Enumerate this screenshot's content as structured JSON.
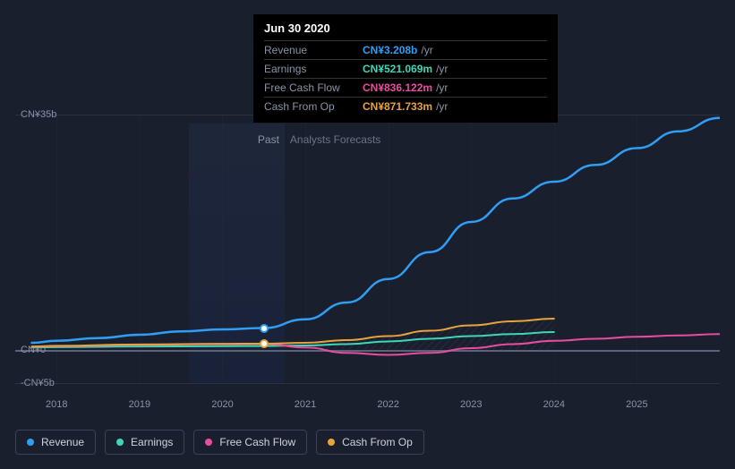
{
  "tooltip": {
    "date": "Jun 30 2020",
    "rows": [
      {
        "label": "Revenue",
        "value": "CN¥3.208b",
        "unit": "/yr",
        "color": "#2f9ef4"
      },
      {
        "label": "Earnings",
        "value": "CN¥521.069m",
        "unit": "/yr",
        "color": "#3fd6b8"
      },
      {
        "label": "Free Cash Flow",
        "value": "CN¥836.122m",
        "unit": "/yr",
        "color": "#e94ca0"
      },
      {
        "label": "Cash From Op",
        "value": "CN¥871.733m",
        "unit": "/yr",
        "color": "#e8a33d"
      }
    ]
  },
  "chart": {
    "bg": "#1a1f2e",
    "grid_color": "#2a3142",
    "baseline_color": "#5a6378",
    "y": {
      "min": -5,
      "max": 35,
      "ticks": [
        {
          "v": 35,
          "label": "CN¥35b"
        },
        {
          "v": 0,
          "label": "CN¥0"
        },
        {
          "v": -5,
          "label": "-CN¥5b"
        }
      ]
    },
    "x": {
      "min": 2017.5,
      "max": 2026,
      "ticks": [
        2018,
        2019,
        2020,
        2021,
        2022,
        2023,
        2024,
        2025
      ]
    },
    "past_end": 2020.75,
    "past_label": "Past",
    "forecast_label": "Analysts Forecasts",
    "marker_x": 2020.5,
    "series": [
      {
        "name": "Revenue",
        "color": "#2f9ef4",
        "width": 2.5,
        "pts": [
          [
            2017.7,
            1.0
          ],
          [
            2018,
            1.3
          ],
          [
            2018.5,
            1.7
          ],
          [
            2019,
            2.2
          ],
          [
            2019.5,
            2.7
          ],
          [
            2020,
            3.0
          ],
          [
            2020.5,
            3.2
          ],
          [
            2021,
            4.5
          ],
          [
            2021.5,
            7.0
          ],
          [
            2022,
            10.5
          ],
          [
            2022.5,
            14.5
          ],
          [
            2023,
            19.0
          ],
          [
            2023.5,
            22.5
          ],
          [
            2024,
            25.0
          ],
          [
            2024.5,
            27.5
          ],
          [
            2025,
            30.0
          ],
          [
            2025.5,
            32.5
          ],
          [
            2026,
            34.5
          ]
        ]
      },
      {
        "name": "Earnings",
        "color": "#3fd6b8",
        "width": 2,
        "pts": [
          [
            2017.7,
            0.3
          ],
          [
            2018,
            0.35
          ],
          [
            2019,
            0.45
          ],
          [
            2020,
            0.5
          ],
          [
            2020.5,
            0.52
          ],
          [
            2021,
            0.6
          ],
          [
            2021.5,
            0.8
          ],
          [
            2022,
            1.2
          ],
          [
            2022.5,
            1.6
          ],
          [
            2023,
            2.0
          ],
          [
            2023.5,
            2.3
          ],
          [
            2024,
            2.6
          ]
        ]
      },
      {
        "name": "Free Cash Flow",
        "color": "#e94ca0",
        "width": 2,
        "pts": [
          [
            2017.7,
            0.4
          ],
          [
            2018,
            0.5
          ],
          [
            2019,
            0.7
          ],
          [
            2020,
            0.8
          ],
          [
            2020.5,
            0.84
          ],
          [
            2021,
            0.3
          ],
          [
            2021.5,
            -0.5
          ],
          [
            2022,
            -0.8
          ],
          [
            2022.5,
            -0.5
          ],
          [
            2023,
            0.2
          ],
          [
            2023.5,
            0.8
          ],
          [
            2024,
            1.3
          ],
          [
            2024.5,
            1.6
          ],
          [
            2025,
            1.9
          ],
          [
            2025.5,
            2.1
          ],
          [
            2026,
            2.3
          ]
        ]
      },
      {
        "name": "Cash From Op",
        "color": "#e8a33d",
        "width": 2,
        "pts": [
          [
            2017.7,
            0.45
          ],
          [
            2018,
            0.55
          ],
          [
            2019,
            0.75
          ],
          [
            2020,
            0.85
          ],
          [
            2020.5,
            0.87
          ],
          [
            2021,
            1.0
          ],
          [
            2021.5,
            1.4
          ],
          [
            2022,
            2.0
          ],
          [
            2022.5,
            2.8
          ],
          [
            2023,
            3.6
          ],
          [
            2023.5,
            4.2
          ],
          [
            2024,
            4.6
          ]
        ]
      }
    ]
  },
  "legend": [
    {
      "label": "Revenue",
      "color": "#2f9ef4"
    },
    {
      "label": "Earnings",
      "color": "#3fd6b8"
    },
    {
      "label": "Free Cash Flow",
      "color": "#e94ca0"
    },
    {
      "label": "Cash From Op",
      "color": "#e8a33d"
    }
  ]
}
